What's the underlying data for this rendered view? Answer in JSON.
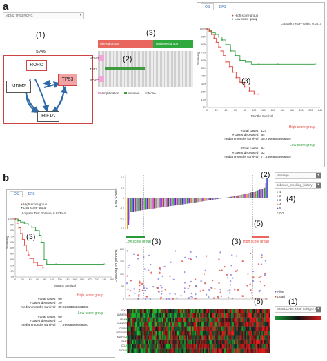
{
  "panel_a": {
    "letter": "a",
    "gene_selector": "MDM2 TP53 RORC",
    "percent": "57%",
    "nodes": [
      "RORC",
      "MDM2",
      "TP53",
      "HIF1A"
    ],
    "callouts": {
      "network": "(1)",
      "oncoprint": "(2)",
      "groups": "(3)",
      "km": "(3)"
    },
    "oncoprint": {
      "group_labels": [
        "Altered group",
        "Unaltered group"
      ],
      "genes": [
        "MDM2",
        "TP53",
        "RORC"
      ],
      "legend": [
        "Amplification",
        "Mutation",
        "None"
      ]
    },
    "km": {
      "tabs": [
        "OS",
        "DFS"
      ],
      "legend": [
        "High score group",
        "Low score group"
      ],
      "pvalue": "Logrank Test P-Value: 0.0317",
      "ylabel": "Surviving",
      "xlabel": "Months Survival",
      "yticks": [
        "100%",
        "90%",
        "80%",
        "70%",
        "60%",
        "50%",
        "40%",
        "30%",
        "20%",
        "10%",
        "0%"
      ],
      "xticks": [
        "0",
        "20",
        "40",
        "60",
        "80",
        "100",
        "120",
        "140",
        "160",
        "180",
        "200",
        "220",
        "240"
      ]
    },
    "stats": {
      "high_title": "High score group",
      "high": [
        [
          "#total cases",
          "124"
        ],
        [
          "#cases deceased",
          "54"
        ],
        [
          "median months survival",
          "35.76666666666667"
        ]
      ],
      "low_title": "Low score group",
      "low": [
        [
          "#total cases",
          "94"
        ],
        [
          "#cases deceased",
          "32"
        ],
        [
          "median months survival",
          "77.26666666666667"
        ]
      ]
    }
  },
  "panel_b": {
    "letter": "b",
    "callouts": {
      "km": "(3)",
      "risk_top": "(2)",
      "legend": "(4)",
      "low": "(3)",
      "low2": "(3)",
      "high": "(3)",
      "five_a": "(5)",
      "five_b": "(5)",
      "one": "(1)"
    },
    "km": {
      "tabs": [
        "OS",
        "DFS"
      ],
      "legend": [
        "High score group",
        "Low score group"
      ],
      "pvalue": "Logrank Test P-Value: 6.923e-4",
      "ylabel": "Surviving",
      "xlabel": "Months Survival",
      "yticks": [
        "100%",
        "90%",
        "80%",
        "70%",
        "60%",
        "50%",
        "40%",
        "30%",
        "20%",
        "10%",
        "0%"
      ],
      "xticks": [
        "0",
        "20",
        "40",
        "60",
        "80",
        "100",
        "120",
        "140",
        "160",
        "180",
        "200",
        "220",
        "240",
        "260"
      ]
    },
    "stats": {
      "high_title": "High score group",
      "high": [
        [
          "#total cases",
          "60"
        ],
        [
          "#cases deceased",
          "29"
        ],
        [
          "median months survival",
          "39.03333333333333"
        ]
      ],
      "low_title": "Low score group",
      "low": [
        [
          "#total cases",
          "60"
        ],
        [
          "#cases deceased",
          "13"
        ],
        [
          "median months survival",
          "77.26666666666667"
        ]
      ]
    },
    "risk": {
      "ylabel": "Risk Scores",
      "yticks": [
        "0.2",
        "0.1",
        "0",
        "-0.1",
        "-0.2",
        "-0.3"
      ],
      "low_label": "Low score group",
      "high_label": "High score group"
    },
    "followup": {
      "ylabel": "Following up (months)",
      "yticks": [
        "200",
        "150",
        "100",
        "50",
        "0"
      ],
      "legend": [
        "Alive",
        "Dead"
      ]
    },
    "controls": {
      "average": "Average",
      "clinical": "tobacco_smoking_history",
      "legend_items": [
        "1",
        "2",
        "3",
        "4",
        "5",
        "NA"
      ],
      "legend_colors": [
        "#2aa52a",
        "#e23ad0",
        "#2940c9",
        "#e8a127",
        "#8a3ce0",
        "#bbbbbb"
      ],
      "subtype": "SMCLUAD : NMF Subtype 3"
    },
    "heatmap_genes": [
      "RTKN",
      "ADAMTS1",
      "MCAM",
      "ADAMTS4",
      "CEBPD",
      "SERPINE1",
      "ANGPTL4",
      "NNMT",
      "CCL2",
      "SLC2A1"
    ]
  }
}
